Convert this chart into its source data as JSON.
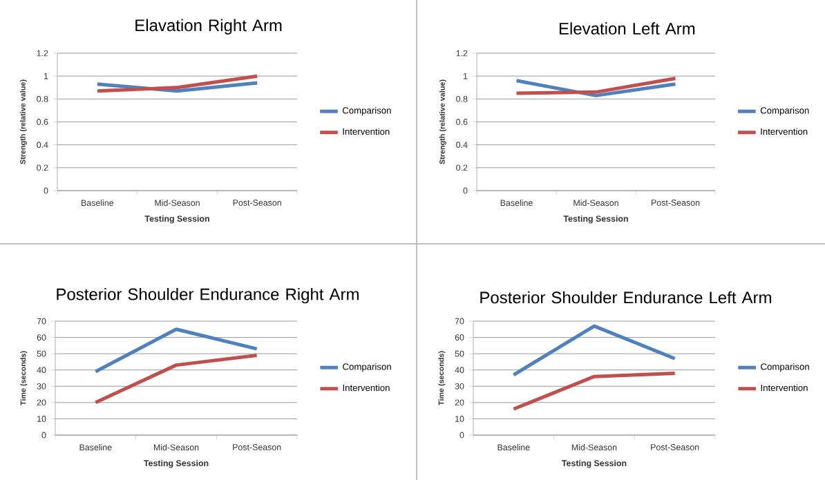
{
  "chart_data": [
    {
      "type": "line",
      "title": "Elavation Right Arm",
      "xlabel": "Testing Session",
      "ylabel": "Strength (relative value)",
      "categories": [
        "Baseline",
        "Mid-Season",
        "Post-Season"
      ],
      "ylim": [
        0,
        1.2
      ],
      "yticks": [
        0,
        0.2,
        0.4,
        0.6,
        0.8,
        1,
        1.2
      ],
      "grid": "y",
      "legend": "right",
      "series": [
        {
          "name": "Comparison",
          "color": "#4f81bd",
          "values": [
            0.93,
            0.87,
            0.94
          ]
        },
        {
          "name": "Intervention",
          "color": "#c0504d",
          "values": [
            0.87,
            0.9,
            1.0
          ]
        }
      ]
    },
    {
      "type": "line",
      "title": "Elevation Left Arm",
      "xlabel": "Testing Session",
      "ylabel": "Strength (relative value)",
      "categories": [
        "Baseline",
        "Mid-Season",
        "Post-Season"
      ],
      "ylim": [
        0,
        1.2
      ],
      "yticks": [
        0,
        0.2,
        0.4,
        0.6,
        0.8,
        1,
        1.2
      ],
      "grid": "y",
      "legend": "right",
      "series": [
        {
          "name": "Comparison",
          "color": "#4f81bd",
          "values": [
            0.96,
            0.83,
            0.93
          ]
        },
        {
          "name": "Intervention",
          "color": "#c0504d",
          "values": [
            0.85,
            0.86,
            0.98
          ]
        }
      ]
    },
    {
      "type": "line",
      "title": "Posterior Shoulder Endurance Right Arm",
      "xlabel": "Testing Session",
      "ylabel": "Time (seconds)",
      "categories": [
        "Baseline",
        "Mid-Season",
        "Post-Season"
      ],
      "ylim": [
        0,
        70
      ],
      "yticks": [
        0,
        10,
        20,
        30,
        40,
        50,
        60,
        70
      ],
      "grid": "y",
      "legend": "right",
      "series": [
        {
          "name": "Comparison",
          "color": "#4f81bd",
          "values": [
            39,
            65,
            53
          ]
        },
        {
          "name": "Intervention",
          "color": "#c0504d",
          "values": [
            20,
            43,
            49
          ]
        }
      ]
    },
    {
      "type": "line",
      "title": "Posterior Shoulder Endurance Left Arm",
      "xlabel": "Testing Session",
      "ylabel": "Time (seconds)",
      "categories": [
        "Baseline",
        "Mid-Season",
        "Post-Season"
      ],
      "ylim": [
        0,
        70
      ],
      "yticks": [
        0,
        10,
        20,
        30,
        40,
        50,
        60,
        70
      ],
      "grid": "y",
      "legend": "right",
      "series": [
        {
          "name": "Comparison",
          "color": "#4f81bd",
          "values": [
            37,
            67,
            47
          ]
        },
        {
          "name": "Intervention",
          "color": "#c0504d",
          "values": [
            16,
            36,
            38
          ]
        }
      ]
    }
  ]
}
